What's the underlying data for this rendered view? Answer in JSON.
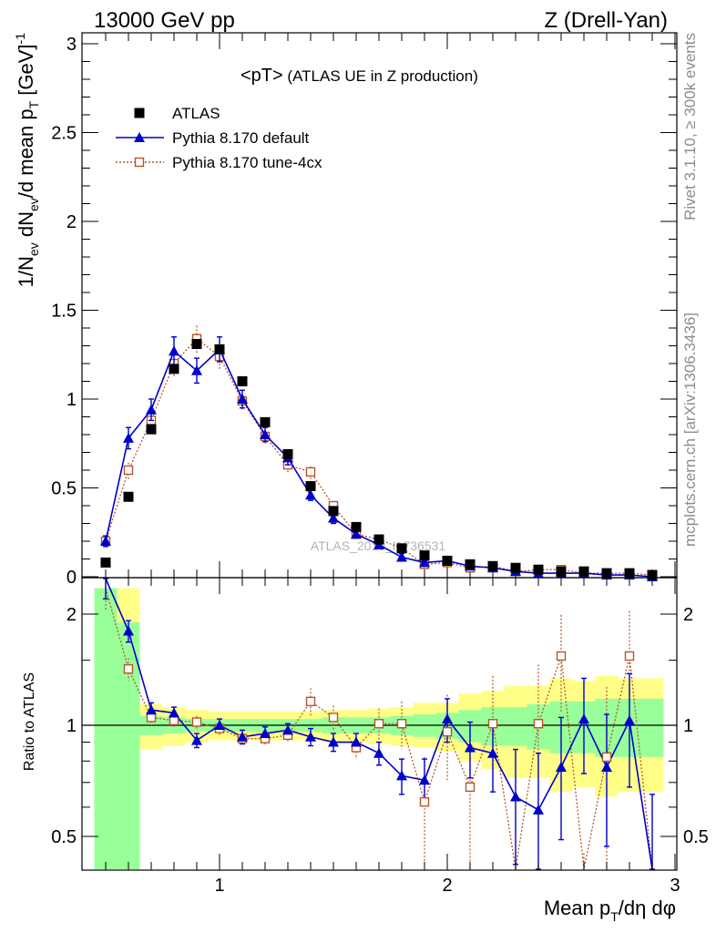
{
  "header": {
    "left": "13000 GeV pp",
    "right": "Z (Drell-Yan)"
  },
  "side_text": {
    "rivet": "Rivet 3.1.10, ≥ 300k events",
    "mcplots": "mcplots.cern.ch [arXiv:1306.3436]"
  },
  "watermark": "ATLAS_2019_I1736531",
  "colors": {
    "data": "#000000",
    "pythia_default": "#0000cc",
    "pythia_4cx": "#b5552a",
    "band_inner": "#99ff99",
    "band_outer": "#ffff88"
  },
  "chart_data": [
    {
      "type": "scatter",
      "title": "<pT> (ATLAS UE in Z production)",
      "ylabel": "1/N_ev dN_ev/d mean p_T [GeV]^-1",
      "xlim": [
        0.4,
        3.0
      ],
      "ylim": [
        0,
        3.1
      ],
      "yticks": [
        0,
        0.5,
        1,
        1.5,
        2,
        2.5,
        3
      ],
      "ytick_labels": [
        "0",
        "0.5",
        "1",
        "1.5",
        "2",
        "2.5",
        "3"
      ],
      "legend_position": "top-left",
      "x": [
        0.5,
        0.6,
        0.7,
        0.8,
        0.9,
        1.0,
        1.1,
        1.2,
        1.3,
        1.4,
        1.5,
        1.6,
        1.7,
        1.8,
        1.9,
        2.0,
        2.1,
        2.2,
        2.3,
        2.4,
        2.5,
        2.6,
        2.7,
        2.8,
        2.9
      ],
      "series": [
        {
          "name": "ATLAS",
          "marker": "filled-square",
          "values": [
            0.08,
            0.45,
            0.83,
            1.17,
            1.31,
            1.28,
            1.1,
            0.87,
            0.69,
            0.51,
            0.37,
            0.28,
            0.21,
            0.16,
            0.12,
            0.09,
            0.07,
            0.06,
            0.05,
            0.04,
            0.03,
            0.03,
            0.02,
            0.02,
            0.01
          ]
        },
        {
          "name": "Pythia 8.170 default",
          "marker": "filled-triangle",
          "line": "solid",
          "values": [
            0.2,
            0.78,
            0.94,
            1.27,
            1.16,
            1.28,
            1.0,
            0.8,
            0.67,
            0.46,
            0.33,
            0.24,
            0.18,
            0.11,
            0.08,
            0.09,
            0.06,
            0.05,
            0.03,
            0.02,
            0.02,
            0.02,
            0.01,
            0.01,
            0.0
          ],
          "errors": [
            0.03,
            0.06,
            0.06,
            0.08,
            0.07,
            0.07,
            0.05,
            0.04,
            0.04,
            0.03,
            0.03,
            0.02,
            0.02,
            0.02,
            0.01,
            0.01,
            0.01,
            0.01,
            0.01,
            0.01,
            0.01,
            0.01,
            0.01,
            0.01,
            0.01
          ]
        },
        {
          "name": "Pythia 8.170 tune-4cx",
          "marker": "open-square",
          "line": "dotted",
          "values": [
            0.2,
            0.6,
            0.88,
            1.2,
            1.34,
            1.24,
            0.99,
            0.79,
            0.63,
            0.59,
            0.4,
            0.24,
            0.21,
            0.16,
            0.07,
            0.08,
            0.05,
            0.06,
            0.03,
            0.04,
            0.04,
            0.02,
            0.02,
            0.02,
            0.01
          ],
          "errors": [
            0.03,
            0.05,
            0.06,
            0.07,
            0.08,
            0.07,
            0.05,
            0.04,
            0.04,
            0.04,
            0.03,
            0.02,
            0.02,
            0.02,
            0.01,
            0.01,
            0.01,
            0.01,
            0.01,
            0.01,
            0.01,
            0.01,
            0.01,
            0.01,
            0.01
          ]
        }
      ]
    },
    {
      "type": "line",
      "ylabel": "Ratio to ATLAS",
      "xlabel": "Mean p_T/dη dφ",
      "xlim": [
        0.4,
        3.0
      ],
      "ylim": [
        0.35,
        2.35
      ],
      "xticks": [
        1,
        2,
        3
      ],
      "xtick_labels": [
        "1",
        "2",
        "3"
      ],
      "yticks": [
        0.5,
        1,
        2
      ],
      "ytick_labels": [
        "0.5",
        "1",
        "2"
      ],
      "reference_line": 1,
      "x": [
        0.5,
        0.6,
        0.7,
        0.8,
        0.9,
        1.0,
        1.1,
        1.2,
        1.3,
        1.4,
        1.5,
        1.6,
        1.7,
        1.8,
        1.9,
        2.0,
        2.1,
        2.2,
        2.3,
        2.4,
        2.5,
        2.6,
        2.7,
        2.8,
        2.9
      ],
      "bands": {
        "edges": [
          0.45,
          0.55,
          0.65,
          0.75,
          0.85,
          0.95,
          1.05,
          1.15,
          1.25,
          1.35,
          1.45,
          1.55,
          1.65,
          1.75,
          1.85,
          1.95,
          2.05,
          2.15,
          2.25,
          2.35,
          2.45,
          2.55,
          2.65,
          2.75,
          2.85,
          2.95
        ],
        "inner_lo": [
          0.3,
          0.3,
          0.94,
          0.95,
          0.96,
          0.96,
          0.96,
          0.96,
          0.96,
          0.96,
          0.95,
          0.95,
          0.95,
          0.94,
          0.93,
          0.92,
          0.9,
          0.88,
          0.88,
          0.86,
          0.84,
          0.84,
          0.82,
          0.82,
          0.82
        ],
        "inner_hi": [
          2.35,
          1.9,
          1.06,
          1.05,
          1.04,
          1.04,
          1.04,
          1.04,
          1.04,
          1.04,
          1.05,
          1.05,
          1.05,
          1.06,
          1.07,
          1.08,
          1.1,
          1.12,
          1.12,
          1.14,
          1.16,
          1.16,
          1.18,
          1.18,
          1.18
        ],
        "outer_lo": [
          0.3,
          0.3,
          0.86,
          0.88,
          0.9,
          0.91,
          0.91,
          0.91,
          0.91,
          0.91,
          0.9,
          0.9,
          0.89,
          0.88,
          0.87,
          0.85,
          0.8,
          0.76,
          0.72,
          0.72,
          0.66,
          0.68,
          0.64,
          0.66,
          0.66
        ],
        "outer_hi": [
          2.35,
          2.35,
          1.14,
          1.12,
          1.1,
          1.09,
          1.09,
          1.09,
          1.09,
          1.09,
          1.1,
          1.1,
          1.11,
          1.12,
          1.15,
          1.15,
          1.22,
          1.24,
          1.28,
          1.28,
          1.34,
          1.32,
          1.36,
          1.34,
          1.34
        ]
      },
      "series": [
        {
          "name": "Pythia 8.170 default",
          "marker": "filled-triangle",
          "line": "solid",
          "values": [
            2.5,
            1.8,
            1.1,
            1.08,
            0.91,
            1.0,
            0.93,
            0.95,
            0.97,
            0.93,
            0.9,
            0.9,
            0.84,
            0.73,
            0.71,
            1.04,
            0.87,
            0.84,
            0.64,
            0.59,
            0.77,
            1.04,
            0.77,
            1.03,
            0.25
          ],
          "errors": [
            0.3,
            0.12,
            0.05,
            0.04,
            0.04,
            0.04,
            0.04,
            0.04,
            0.04,
            0.05,
            0.05,
            0.05,
            0.06,
            0.08,
            0.1,
            0.14,
            0.15,
            0.18,
            0.22,
            0.25,
            0.28,
            0.3,
            0.3,
            0.35,
            0.4
          ]
        },
        {
          "name": "Pythia 8.170 tune-4cx",
          "marker": "open-square",
          "line": "dotted",
          "values": [
            2.35,
            1.42,
            1.05,
            1.03,
            1.02,
            0.98,
            0.92,
            0.92,
            0.94,
            1.16,
            1.05,
            0.87,
            1.01,
            1.01,
            0.62,
            0.96,
            0.68,
            1.01,
            0.05,
            1.01,
            1.54,
            0.05,
            0.82,
            1.54,
            0.05
          ],
          "errors": [
            0.3,
            0.1,
            0.05,
            0.04,
            0.04,
            0.04,
            0.04,
            0.04,
            0.04,
            0.1,
            0.08,
            0.06,
            0.1,
            0.15,
            0.2,
            0.25,
            0.3,
            0.35,
            0.4,
            0.45,
            0.45,
            0.4,
            0.45,
            0.5,
            0.4
          ]
        }
      ]
    }
  ]
}
